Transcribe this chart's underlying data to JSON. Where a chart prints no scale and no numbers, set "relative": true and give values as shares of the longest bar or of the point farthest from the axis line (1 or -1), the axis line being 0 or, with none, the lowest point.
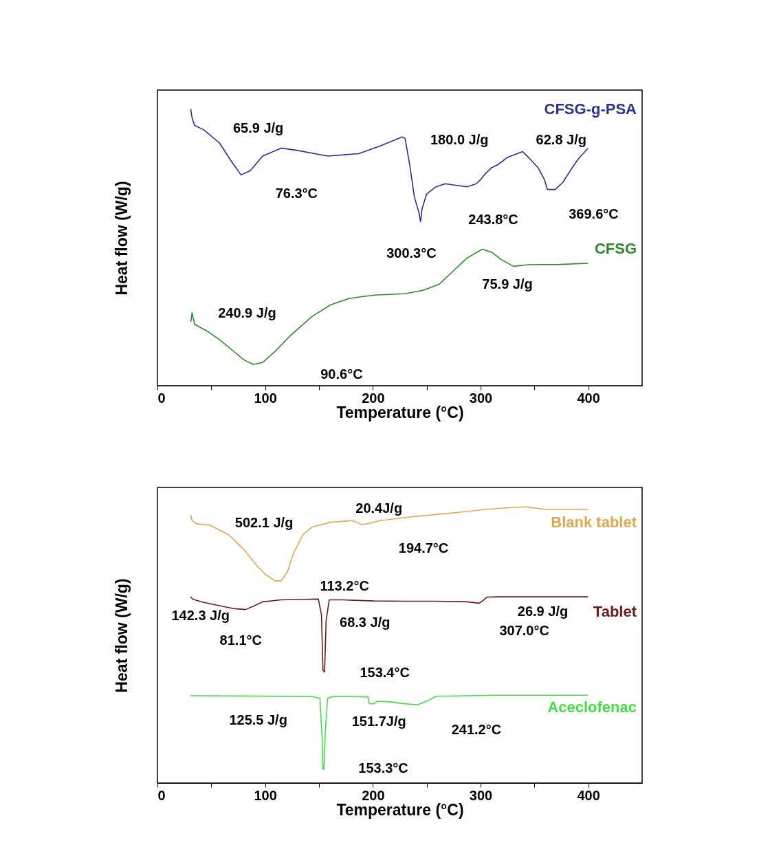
{
  "chart_data": [
    {
      "type": "line",
      "relative": true,
      "xlabel": "Temperature (°C)",
      "ylabel": "Heat flow (W/g)",
      "xlim": [
        0,
        450
      ],
      "xticks": [
        0,
        {
          "value": 50,
          "label": null
        },
        100,
        {
          "value": 150,
          "label": null
        },
        200,
        {
          "value": 250,
          "label": null
        },
        300,
        {
          "value": 350,
          "label": null
        },
        400
      ],
      "tick_labels": "x",
      "series": [
        {
          "name": "CFSG-g-PSA",
          "color": "#2b2f8f",
          "x": [
            31.0,
            32.2,
            34.5,
            43.1,
            57.5,
            69.0,
            77.6,
            86.2,
            97.7,
            114.9,
            129.3,
            158.0,
            186.8,
            206.9,
            227.0,
            229.9,
            234.2,
            238.5,
            242.8,
            244.3,
            245.7,
            250.0,
            258.6,
            267.2,
            275.9,
            287.4,
            296.0,
            300.3,
            304.6,
            310.3,
            316.1,
            324.7,
            339.1,
            343.4,
            353.4,
            359.2,
            362.1,
            369.3,
            376.4,
            385.1,
            390.8,
            399.4
          ],
          "values": [
            1.0,
            0.968,
            0.942,
            0.926,
            0.879,
            0.81,
            0.763,
            0.778,
            0.831,
            0.86,
            0.852,
            0.831,
            0.84,
            0.868,
            0.9,
            0.895,
            0.8,
            0.684,
            0.626,
            0.594,
            0.641,
            0.694,
            0.72,
            0.731,
            0.726,
            0.72,
            0.731,
            0.747,
            0.768,
            0.789,
            0.8,
            0.826,
            0.847,
            0.831,
            0.789,
            0.747,
            0.71,
            0.71,
            0.736,
            0.789,
            0.821,
            0.858
          ]
        },
        {
          "name": "CFSG",
          "color": "#2a8a2a",
          "x": [
            31.0,
            32.2,
            34.5,
            46.0,
            57.5,
            69.0,
            80.5,
            89.1,
            97.7,
            109.2,
            123.6,
            143.7,
            160.9,
            178.2,
            201.1,
            229.9,
            247.1,
            261.5,
            275.9,
            287.4,
            301.7,
            310.3,
            319.0,
            330.5,
            344.8,
            373.6,
            399.4
          ],
          "values": [
            0.232,
            0.264,
            0.222,
            0.198,
            0.167,
            0.13,
            0.093,
            0.077,
            0.084,
            0.124,
            0.182,
            0.251,
            0.293,
            0.316,
            0.328,
            0.333,
            0.346,
            0.367,
            0.42,
            0.462,
            0.494,
            0.483,
            0.457,
            0.432,
            0.438,
            0.439,
            0.443
          ]
        }
      ],
      "annotations": [
        "65.9 J/g",
        "76.3°C",
        "180.0 J/g",
        "62.8 J/g",
        "243.8°C",
        "369.6°C",
        "300.3°C",
        "75.9 J/g",
        "240.9 J/g",
        "90.6°C"
      ]
    },
    {
      "type": "line",
      "relative": true,
      "xlabel": "Temperature (°C)",
      "ylabel": "Heat flow (W/g)",
      "xlim": [
        0,
        450
      ],
      "xticks": [
        0,
        {
          "value": 50,
          "label": null
        },
        100,
        {
          "value": 150,
          "label": null
        },
        200,
        {
          "value": 250,
          "label": null
        },
        300,
        {
          "value": 350,
          "label": null
        },
        400
      ],
      "tick_labels": "x",
      "series": [
        {
          "name": "Blank tablet",
          "color": "#e0a850",
          "x": [
            31.0,
            32.2,
            35.9,
            48.9,
            66.1,
            80.5,
            92.0,
            100.6,
            109.2,
            114.9,
            120.7,
            126.4,
            135.1,
            143.7,
            160.9,
            181.0,
            185.3,
            189.7,
            195.4,
            206.9,
            229.9,
            258.6,
            287.4,
            301.7,
            316.1,
            342.0,
            359.2,
            399.4
          ],
          "values": [
            0.969,
            0.95,
            0.939,
            0.933,
            0.899,
            0.844,
            0.788,
            0.754,
            0.732,
            0.732,
            0.765,
            0.832,
            0.899,
            0.927,
            0.944,
            0.95,
            0.944,
            0.935,
            0.939,
            0.95,
            0.961,
            0.972,
            0.983,
            0.989,
            0.994,
            1.0,
            0.991,
            0.991
          ]
        },
        {
          "name": "Tablet",
          "color": "#6b1a1a",
          "x": [
            31.0,
            33.0,
            43.1,
            57.5,
            71.8,
            81.9,
            89.1,
            97.7,
            114.9,
            135.1,
            149.4,
            152.3,
            153.7,
            155.2,
            156.6,
            159.5,
            172.4,
            201.1,
            229.9,
            258.6,
            287.4,
            298.9,
            301.7,
            306.0,
            316.1,
            399.4
          ],
          "values": [
            0.673,
            0.665,
            0.654,
            0.642,
            0.631,
            0.628,
            0.64,
            0.656,
            0.663,
            0.665,
            0.666,
            0.609,
            0.408,
            0.402,
            0.587,
            0.663,
            0.663,
            0.659,
            0.658,
            0.658,
            0.656,
            0.651,
            0.659,
            0.673,
            0.674,
            0.674
          ]
        },
        {
          "name": "Aceclofenac",
          "color": "#44dd44",
          "x": [
            31.0,
            86.2,
            143.7,
            150.9,
            152.9,
            153.7,
            154.6,
            155.7,
            158.0,
            163.8,
            195.4,
            196.8,
            201.1,
            204.0,
            215.5,
            229.9,
            241.4,
            250.0,
            258.6,
            287.4,
            316.1,
            399.4
          ],
          "values": [
            0.316,
            0.315,
            0.313,
            0.307,
            0.162,
            0.05,
            0.05,
            0.173,
            0.307,
            0.314,
            0.312,
            0.287,
            0.287,
            0.296,
            0.294,
            0.287,
            0.283,
            0.296,
            0.314,
            0.316,
            0.318,
            0.318
          ]
        }
      ],
      "annotations": [
        "502.1 J/g",
        "20.4J/g",
        "194.7°C",
        "113.2°C",
        "142.3 J/g",
        "81.1°C",
        "68.3 J/g",
        "153.4°C",
        "26.9 J/g",
        "307.0°C",
        "125.5 J/g",
        "151.7J/g",
        "241.2°C",
        "153.3°C"
      ]
    }
  ]
}
